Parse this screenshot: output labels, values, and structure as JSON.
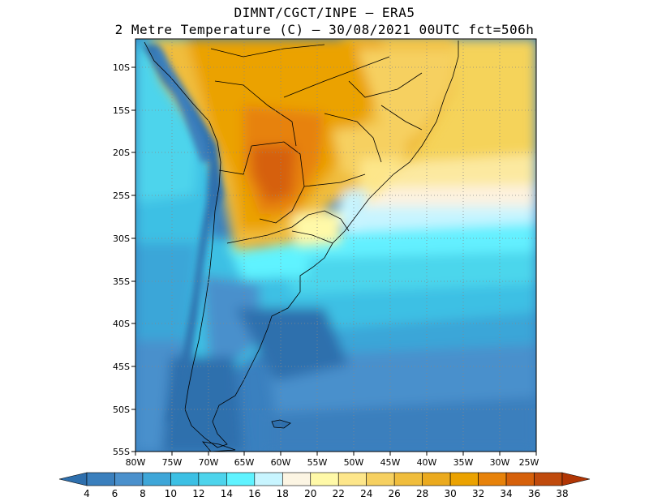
{
  "title": {
    "line1": "DIMNT/CGCT/INPE –  ERA5",
    "line2": "2 Metre Temperature (C) –  30/08/2021 00UTC fct=506h"
  },
  "map": {
    "lon_range": [
      -80,
      -25
    ],
    "lat_range": [
      -55,
      -7.5
    ],
    "grid": "dotted",
    "lat_labels": [
      "10S",
      "15S",
      "20S",
      "25S",
      "30S",
      "35S",
      "40S",
      "45S",
      "50S",
      "55S"
    ],
    "lon_labels": [
      "80W",
      "75W",
      "70W",
      "65W",
      "60W",
      "55W",
      "50W",
      "45W",
      "40W",
      "35W",
      "30W",
      "25W"
    ]
  },
  "colorbar": {
    "labels": [
      "4",
      "6",
      "8",
      "10",
      "12",
      "14",
      "16",
      "18",
      "20",
      "22",
      "24",
      "26",
      "28",
      "30",
      "32",
      "34",
      "36",
      "38"
    ],
    "colors": [
      "#2e6fad",
      "#3a7fbd",
      "#4a90cc",
      "#3ea6d8",
      "#3cc0e4",
      "#4dd4ec",
      "#5ff3ff",
      "#c8f5ff",
      "#fcf5e3",
      "#fff9a8",
      "#fde68a",
      "#f6d060",
      "#f0bd3c",
      "#ebaa1e",
      "#eba200",
      "#e7820a",
      "#d6600a",
      "#c04a0c",
      "#b13605"
    ]
  }
}
